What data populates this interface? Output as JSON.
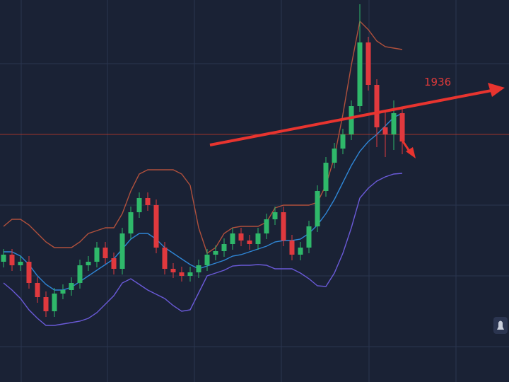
{
  "chart_data": {
    "type": "candlestick",
    "ylim": [
      1761,
      2031
    ],
    "up_color": "#2fb86a",
    "down_color": "#e0393e",
    "reference_line": 1936,
    "reference_color": "#c0392b",
    "open": [
      1846,
      1851,
      1843.5,
      1846,
      1831,
      1821,
      1811,
      1823.5,
      1826,
      1831,
      1843.5,
      1846,
      1856,
      1848.5,
      1841,
      1866,
      1881,
      1891,
      1886,
      1856,
      1841,
      1838.5,
      1836,
      1838.5,
      1843.5,
      1851,
      1853.5,
      1858.5,
      1866,
      1861,
      1858.5,
      1866,
      1876,
      1881,
      1861,
      1851,
      1856,
      1871,
      1896,
      1916,
      1926,
      1936,
      1956,
      2001,
      1971,
      1941,
      1936,
      1951
    ],
    "high": [
      1855,
      1855,
      1850,
      1850,
      1835,
      1825,
      1827.5,
      1830,
      1835,
      1847.5,
      1850,
      1860,
      1860,
      1852.5,
      1870,
      1885,
      1895,
      1895,
      1890,
      1860,
      1845,
      1842.5,
      1842.5,
      1847.5,
      1855,
      1857.5,
      1862.5,
      1870,
      1870,
      1865,
      1870,
      1880,
      1885,
      1885,
      1865,
      1860,
      1875,
      1900,
      1920,
      1930,
      1940,
      1960,
      2028,
      2005,
      1975,
      1952,
      1960,
      1955
    ],
    "low": [
      1842,
      1839.5,
      1839.5,
      1827,
      1817,
      1807,
      1807,
      1819.5,
      1822,
      1827,
      1839.5,
      1842,
      1844.5,
      1837,
      1837,
      1862,
      1877,
      1882,
      1852,
      1837,
      1834.5,
      1832,
      1832,
      1834.5,
      1839.5,
      1847,
      1849.5,
      1854.5,
      1857,
      1854.5,
      1854.5,
      1862,
      1872,
      1857,
      1847,
      1847,
      1852,
      1867,
      1892,
      1912,
      1922,
      1932,
      1952,
      1967,
      1927,
      1920,
      1925,
      1922
    ],
    "close": [
      1851,
      1843.5,
      1846,
      1831,
      1821,
      1811,
      1823.5,
      1826,
      1831,
      1843.5,
      1846,
      1856,
      1848.5,
      1841,
      1866,
      1881,
      1891,
      1886,
      1856,
      1841,
      1838.5,
      1836,
      1838.5,
      1843.5,
      1851,
      1853.5,
      1858.5,
      1866,
      1861,
      1858.5,
      1866,
      1876,
      1881,
      1861,
      1851,
      1856,
      1871,
      1896,
      1916,
      1926,
      1936,
      1956,
      2001,
      1971,
      1941,
      1936,
      1951,
      1931
    ],
    "bands": [
      {
        "color": "#b0503c",
        "values": [
          1871,
          1876,
          1876,
          1872,
          1866,
          1860,
          1856,
          1856,
          1856,
          1860,
          1866,
          1868,
          1870,
          1870,
          1880,
          1896,
          1908,
          1911,
          1911,
          1911,
          1911,
          1908,
          1900,
          1870,
          1852,
          1856,
          1866,
          1870,
          1871,
          1871,
          1871,
          1874,
          1884,
          1886,
          1886,
          1886,
          1886,
          1888,
          1900,
          1920,
          1950,
          1985,
          2016,
          2010,
          2002,
          1998,
          1997,
          1996
        ]
      },
      {
        "color": "#2f86d6",
        "values": [
          1853,
          1853,
          1850,
          1844,
          1836,
          1830,
          1826,
          1826,
          1828,
          1832,
          1836,
          1840,
          1844,
          1848,
          1855,
          1862,
          1866,
          1866,
          1862,
          1856,
          1852,
          1848,
          1844,
          1841,
          1843,
          1845,
          1847,
          1850,
          1851,
          1853,
          1855,
          1857,
          1860,
          1861,
          1861,
          1862,
          1866,
          1872,
          1880,
          1890,
          1902,
          1914,
          1924,
          1931,
          1936,
          1942,
          1948,
          1951
        ]
      },
      {
        "color": "#6a5ad8",
        "values": [
          1831,
          1826,
          1820,
          1812,
          1806,
          1801,
          1801,
          1802,
          1803,
          1804,
          1806,
          1810,
          1816,
          1822,
          1831,
          1834,
          1830,
          1826,
          1823,
          1820,
          1815,
          1811,
          1812,
          1824,
          1836,
          1838,
          1840,
          1843,
          1843.5,
          1843.5,
          1844,
          1843.5,
          1841,
          1841,
          1841,
          1838,
          1834,
          1829,
          1828.5,
          1838,
          1852,
          1870,
          1891,
          1898,
          1903,
          1906,
          1908,
          1908.5
        ]
      }
    ]
  }
}
